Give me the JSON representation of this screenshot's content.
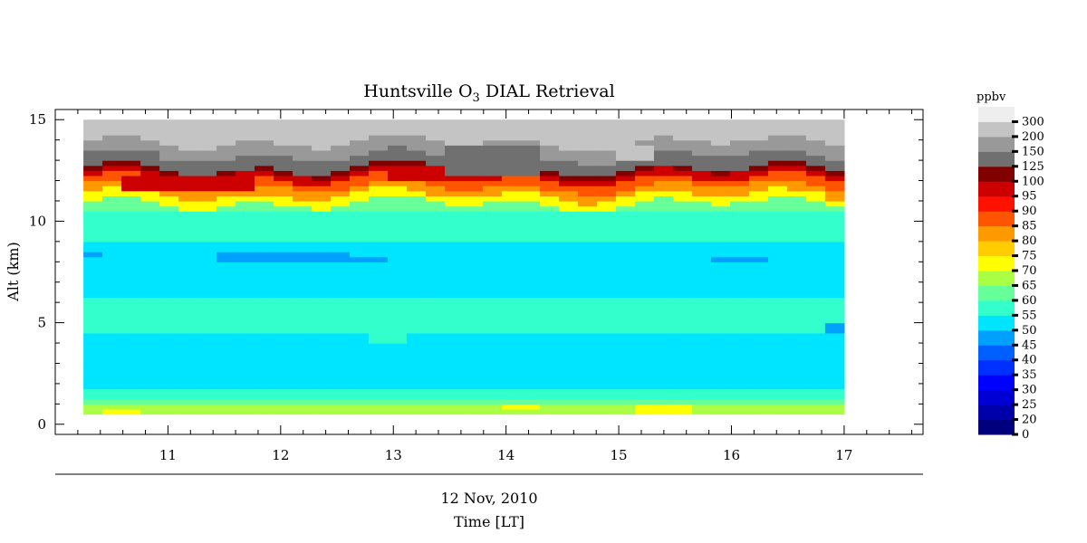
{
  "chart_data": {
    "type": "heatmap",
    "title_prefix": "Huntsville O",
    "title_sub": "3",
    "title_suffix": " DIAL Retrieval",
    "ylabel": "Alt (km)",
    "xlabel": "Time [LT]",
    "date_label": "12 Nov, 2010",
    "xlim": [
      10.0,
      17.7
    ],
    "ylim": [
      -0.5,
      15.5
    ],
    "x_ticks": [
      "11",
      "12",
      "13",
      "14",
      "15",
      "16",
      "17"
    ],
    "y_ticks": [
      "0",
      "5",
      "10",
      "15"
    ],
    "grid": false,
    "colorbar": {
      "unit": "ppbv",
      "levels": [
        "0",
        "20",
        "25",
        "30",
        "35",
        "40",
        "45",
        "50",
        "55",
        "60",
        "65",
        "70",
        "75",
        "80",
        "85",
        "90",
        "95",
        "100",
        "125",
        "150",
        "200",
        "300"
      ],
      "colors": [
        "#00007f",
        "#0000aa",
        "#0000d4",
        "#0000ff",
        "#0030ff",
        "#0060ff",
        "#00a0ff",
        "#00e5ff",
        "#33ffcc",
        "#66ff99",
        "#aaff44",
        "#ffff00",
        "#ffcc00",
        "#ff9900",
        "#ff5500",
        "#ff1100",
        "#cc0000",
        "#800000",
        "#707070",
        "#999999",
        "#c4c4c4",
        "#eeeeee"
      ]
    },
    "data": {
      "time_start": 10.25,
      "time_end": 17.0,
      "n_profiles": 40,
      "alt_min": 0.5,
      "alt_max": 15.0,
      "alt_step": 0.25,
      "profile_layers": [
        {
          "top": 0.9,
          "value": 67
        },
        {
          "top": 1.3,
          "value": 62
        },
        {
          "top": 1.8,
          "value": 57
        },
        {
          "top": 4.5,
          "value": 51
        },
        {
          "top": 6.3,
          "value": 57
        },
        {
          "top": 8.0,
          "value": 52
        },
        {
          "top": 9.0,
          "value": 51
        },
        {
          "top": 10.4,
          "value": 57
        },
        {
          "top": 10.9,
          "value": 62
        },
        {
          "top": 11.3,
          "value": 72
        },
        {
          "top": 11.7,
          "value": 82
        },
        {
          "top": 12.1,
          "value": 88
        },
        {
          "top": 12.4,
          "value": 97
        },
        {
          "top": 12.6,
          "value": 110
        },
        {
          "top": 13.2,
          "value": 138
        },
        {
          "top": 13.9,
          "value": 175
        },
        {
          "top": 15.0,
          "value": 250
        }
      ],
      "features": [
        {
          "t0": 12.8,
          "t1": 13.2,
          "a0": 4.0,
          "a1": 4.6,
          "value": 57
        },
        {
          "t0": 10.6,
          "t1": 11.8,
          "a0": 11.4,
          "a1": 12.2,
          "value": 98
        },
        {
          "t0": 12.9,
          "t1": 13.9,
          "a0": 11.9,
          "a1": 12.7,
          "value": 98
        },
        {
          "t0": 13.4,
          "t1": 14.3,
          "a0": 12.2,
          "a1": 13.8,
          "value": 140
        },
        {
          "t0": 14.9,
          "t1": 15.3,
          "a0": 13.1,
          "a1": 13.7,
          "value": 250
        },
        {
          "t0": 10.25,
          "t1": 10.45,
          "a0": 8.2,
          "a1": 8.5,
          "value": 46
        },
        {
          "t0": 11.4,
          "t1": 12.6,
          "a0": 8.1,
          "a1": 8.5,
          "value": 47
        },
        {
          "t0": 12.6,
          "t1": 13.0,
          "a0": 8.0,
          "a1": 8.3,
          "value": 46
        },
        {
          "t0": 15.9,
          "t1": 16.3,
          "a0": 8.1,
          "a1": 8.3,
          "value": 46
        },
        {
          "t0": 16.8,
          "t1": 17.0,
          "a0": 4.4,
          "a1": 5.0,
          "value": 46
        },
        {
          "t0": 14.0,
          "t1": 14.3,
          "a0": 0.7,
          "a1": 1.0,
          "value": 71
        },
        {
          "t0": 15.1,
          "t1": 15.6,
          "a0": 0.5,
          "a1": 0.9,
          "value": 71
        },
        {
          "t0": 10.5,
          "t1": 10.8,
          "a0": 0.5,
          "a1": 0.8,
          "value": 71
        }
      ]
    }
  }
}
